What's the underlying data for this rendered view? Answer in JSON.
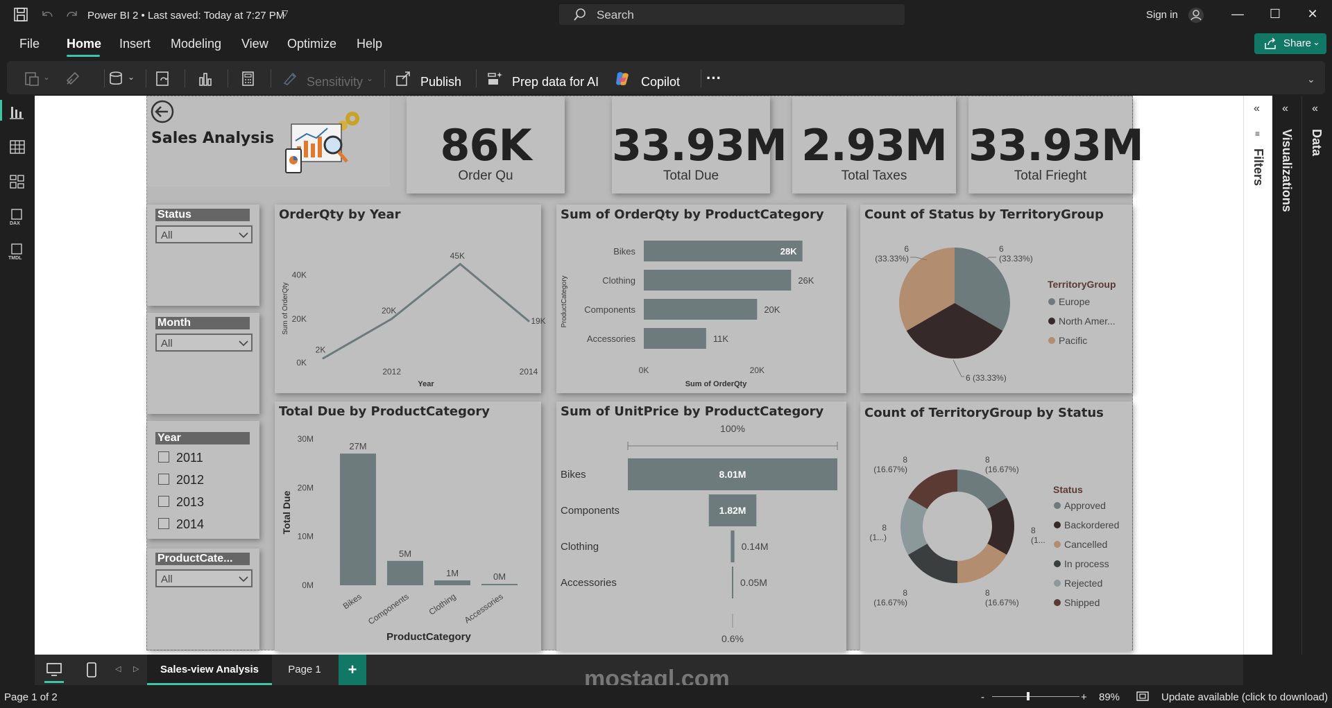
{
  "titlebar": {
    "file_status": "Power BI 2 • Last saved: Today at 7:27 PM",
    "search_placeholder": "Search",
    "sign_in": "Sign in"
  },
  "menu": {
    "items": [
      "File",
      "Home",
      "Insert",
      "Modeling",
      "View",
      "Optimize",
      "Help"
    ],
    "active": "Home",
    "share": "Share"
  },
  "ribbon": {
    "sensitivity": "Sensitivity",
    "publish": "Publish",
    "prep_data": "Prep data for AI",
    "copilot": "Copilot",
    "more": "···"
  },
  "report": {
    "title": "Sales Analysis",
    "kpis": [
      {
        "value": "86K",
        "label": "Order Qu"
      },
      {
        "value": "33.93M",
        "label": "Total Due"
      },
      {
        "value": "2.93M",
        "label": "Total Taxes"
      },
      {
        "value": "33.93M",
        "label": "Total Frieght"
      }
    ],
    "slicers": {
      "status": {
        "title": "Status",
        "value": "All"
      },
      "month": {
        "title": "Month",
        "value": "All"
      },
      "year": {
        "title": "Year",
        "options": [
          "2011",
          "2012",
          "2013",
          "2014"
        ]
      },
      "product_category": {
        "title": "ProductCate...",
        "value": "All"
      }
    }
  },
  "chart_data": [
    {
      "type": "line",
      "title": "OrderQty by Year",
      "xlabel": "Year",
      "ylabel": "Sum of OrderQty",
      "x": [
        2011,
        2012,
        2013,
        2014
      ],
      "values": [
        2000,
        20000,
        45000,
        19000
      ],
      "data_labels": [
        "2K",
        "20K",
        "45K",
        "19K"
      ],
      "x_ticks": [
        "2012",
        "2014"
      ],
      "y_ticks": [
        "0K",
        "20K",
        "40K"
      ],
      "ylim": [
        0,
        50000
      ],
      "color": "#6e7b7d"
    },
    {
      "type": "bar",
      "orientation": "horizontal",
      "title": "Sum of OrderQty by ProductCategory",
      "xlabel": "Sum of OrderQty",
      "ylabel": "ProductCategory",
      "categories": [
        "Bikes",
        "Clothing",
        "Components",
        "Accessories"
      ],
      "values": [
        28000,
        26000,
        20000,
        11000
      ],
      "data_labels": [
        "28K",
        "26K",
        "20K",
        "11K"
      ],
      "x_ticks": [
        "0K",
        "20K"
      ],
      "xlim": [
        0,
        30000
      ],
      "color": "#6e7b7d"
    },
    {
      "type": "pie",
      "title": "Count of Status by TerritoryGroup",
      "legend_title": "TerritoryGroup",
      "categories": [
        "Europe",
        "North Amer...",
        "Pacific"
      ],
      "values": [
        6,
        6,
        6
      ],
      "data_labels": [
        "6\n(33.33%)",
        "6 (33.33%)",
        "6\n(33.33%)"
      ],
      "colors": [
        "#6e7b7d",
        "#352a29",
        "#b38d70"
      ],
      "legend": "right"
    },
    {
      "type": "bar",
      "title": "Total Due by ProductCategory",
      "xlabel": "ProductCategory",
      "ylabel": "Total Due",
      "categories": [
        "Bikes",
        "Components",
        "Clothing",
        "Accessories"
      ],
      "values": [
        27000000,
        5000000,
        1000000,
        0
      ],
      "data_labels": [
        "27M",
        "5M",
        "1M",
        "0M"
      ],
      "y_ticks": [
        "0M",
        "10M",
        "20M",
        "30M"
      ],
      "ylim": [
        0,
        30000000
      ],
      "color": "#6e7b7d"
    },
    {
      "type": "funnel",
      "title": "Sum of UnitPrice by ProductCategory",
      "categories": [
        "Bikes",
        "Components",
        "Clothing",
        "Accessories"
      ],
      "values": [
        8010000,
        1820000,
        140000,
        50000
      ],
      "data_labels": [
        "8.01M",
        "1.82M",
        "0.14M",
        "0.05M"
      ],
      "top_percent": "100%",
      "bottom_percent": "0.6%",
      "color": "#6e7b7d"
    },
    {
      "type": "donut",
      "title": "Count of TerritoryGroup by Status",
      "legend_title": "Status",
      "categories": [
        "Approved",
        "Backordered",
        "Cancelled",
        "In process",
        "Rejected",
        "Shipped"
      ],
      "values": [
        8,
        8,
        8,
        8,
        8,
        8
      ],
      "data_labels": [
        "8\n(16.67%)",
        "8\n(1...",
        "8\n(16.67%)",
        "8\n(16.67%)",
        "8\n(1...)",
        "8\n(16.67%)"
      ],
      "colors": [
        "#6e7b7d",
        "#352a29",
        "#b38d70",
        "#3a3e3f",
        "#8b999b",
        "#5a3a33"
      ],
      "legend": "right"
    }
  ],
  "panes": {
    "filters": "Filters",
    "visualizations": "Visualizations",
    "data": "Data"
  },
  "pages": {
    "tabs": [
      "Sales-view Analysis",
      "Page 1"
    ],
    "active": "Sales-view Analysis",
    "add": "+"
  },
  "status": {
    "page": "Page 1 of 2",
    "zoom": "89%",
    "update": "Update available (click to download)"
  },
  "watermark": "mostaql.com"
}
